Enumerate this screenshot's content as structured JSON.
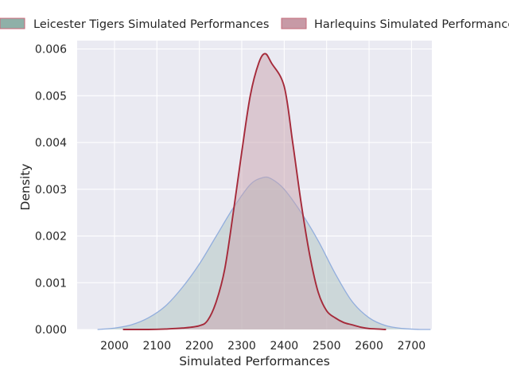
{
  "chart_data": {
    "type": "area",
    "xlabel": "Simulated Performances",
    "ylabel": "Density",
    "xlim": [
      1912,
      2748
    ],
    "ylim": [
      0,
      0.00618
    ],
    "x_ticks": [
      2000,
      2100,
      2200,
      2300,
      2400,
      2500,
      2600,
      2700
    ],
    "y_ticks": [
      0.0,
      0.001,
      0.002,
      0.003,
      0.004,
      0.005,
      0.006
    ],
    "y_tick_labels": [
      "0.000",
      "0.001",
      "0.002",
      "0.003",
      "0.004",
      "0.005",
      "0.006"
    ],
    "grid": true,
    "legend_placement": "top, above plot",
    "series": [
      {
        "name": "Leicester Tigers Simulated Performances",
        "fill": "#b3c6c4",
        "fill_opacity": 0.55,
        "line_color": "#92aedd",
        "legend_fill": "#8fb0a8",
        "legend_edge": "#cc6677",
        "x": [
          1960,
          2000,
          2040,
          2080,
          2120,
          2160,
          2200,
          2240,
          2280,
          2320,
          2350,
          2370,
          2400,
          2440,
          2480,
          2520,
          2560,
          2600,
          2640,
          2680,
          2720,
          2745
        ],
        "y": [
          0.0,
          3e-05,
          0.0001,
          0.00025,
          0.0005,
          0.0009,
          0.0014,
          0.002,
          0.0026,
          0.0031,
          0.00325,
          0.00322,
          0.003,
          0.0025,
          0.0019,
          0.0012,
          0.0006,
          0.00025,
          8e-05,
          2e-05,
          0.0,
          0.0
        ]
      },
      {
        "name": "Harlequins Simulated Performances",
        "fill": "#c9a3ae",
        "fill_opacity": 0.5,
        "line_color": "#a52a3a",
        "legend_fill": "#c79aa6",
        "legend_edge": "#c46a7a",
        "x": [
          2020,
          2080,
          2120,
          2160,
          2200,
          2220,
          2240,
          2260,
          2280,
          2300,
          2320,
          2340,
          2355,
          2370,
          2400,
          2420,
          2440,
          2460,
          2480,
          2500,
          2520,
          2540,
          2560,
          2580,
          2600,
          2640
        ],
        "y": [
          0.0,
          0.0,
          1e-05,
          3e-05,
          8e-05,
          0.0002,
          0.0006,
          0.0013,
          0.0025,
          0.0038,
          0.005,
          0.0057,
          0.0059,
          0.0057,
          0.0052,
          0.004,
          0.0027,
          0.0016,
          0.0008,
          0.0004,
          0.00025,
          0.00015,
          0.0001,
          5e-05,
          2e-05,
          0.0
        ]
      }
    ]
  }
}
